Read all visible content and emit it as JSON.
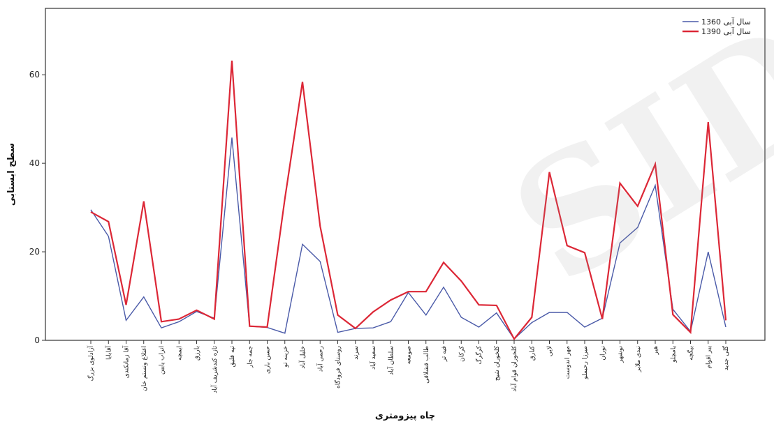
{
  "chart_data": {
    "type": "line",
    "xlabel": "چاه پیزومتری",
    "ylabel": "سطح ایستابی",
    "ylim": [
      0,
      75
    ],
    "yticks": [
      0,
      20,
      40,
      60
    ],
    "grid": false,
    "legend_position": "top-right",
    "categories": [
      "آزادلوی بزرگ",
      "آقابابا",
      "آقا زمانکندی",
      "اغتلاغ ونستم خان",
      "انزاب پایین",
      "ایمچه",
      "بارزق",
      "تازه کندشریف آباد",
      "تپه قلیق",
      "جمه جار",
      "حسن باری",
      "خزینه تو",
      "خلیل آباد",
      "رحمی آباد",
      "روستای فرودگاه",
      "سرند",
      "سعید آباد",
      "سلطان آباد",
      "صومعه",
      "طالب قشلاقی",
      "فیه تر",
      "کرکان",
      "کرگرگ",
      "کلخوران شیخ",
      "کلخوران قوام آباد",
      "کنارق",
      "لایی",
      "مهر اندوست",
      "میرزا رحیملو",
      "نوران",
      "نوشهر",
      "نیدی ملایر",
      "هیر",
      "یامچلو",
      "بیگچه",
      "پیر اقوام",
      "گلی جدید"
    ],
    "series": [
      {
        "name": "سال آبی 1360",
        "color": "#4a5aa8",
        "values": [
          29.5,
          23.5,
          4.5,
          9.8,
          2.8,
          4.2,
          6.5,
          5.0,
          45.8,
          3.2,
          2.9,
          1.6,
          21.7,
          17.8,
          1.8,
          2.7,
          2.8,
          4.2,
          10.8,
          5.7,
          12.0,
          5.2,
          3.0,
          6.2,
          0.3,
          4.0,
          6.3,
          6.3,
          3.0,
          5.0,
          22.0,
          25.5,
          35.0,
          7.0,
          2.0,
          20.0,
          3.0
        ]
      },
      {
        "name": "سال آبی 1390",
        "color": "#dc2736",
        "values": [
          29.0,
          26.8,
          8.0,
          31.4,
          4.2,
          4.8,
          6.8,
          4.8,
          63.2,
          3.2,
          3.0,
          32.0,
          58.4,
          25.8,
          5.7,
          2.7,
          6.4,
          9.1,
          11.0,
          11.0,
          17.6,
          13.4,
          8.0,
          7.9,
          0.3,
          5.2,
          38.0,
          21.4,
          19.8,
          4.8,
          35.5,
          30.3,
          39.8,
          5.8,
          1.8,
          49.3,
          4.5
        ]
      }
    ]
  },
  "watermark": "SID"
}
